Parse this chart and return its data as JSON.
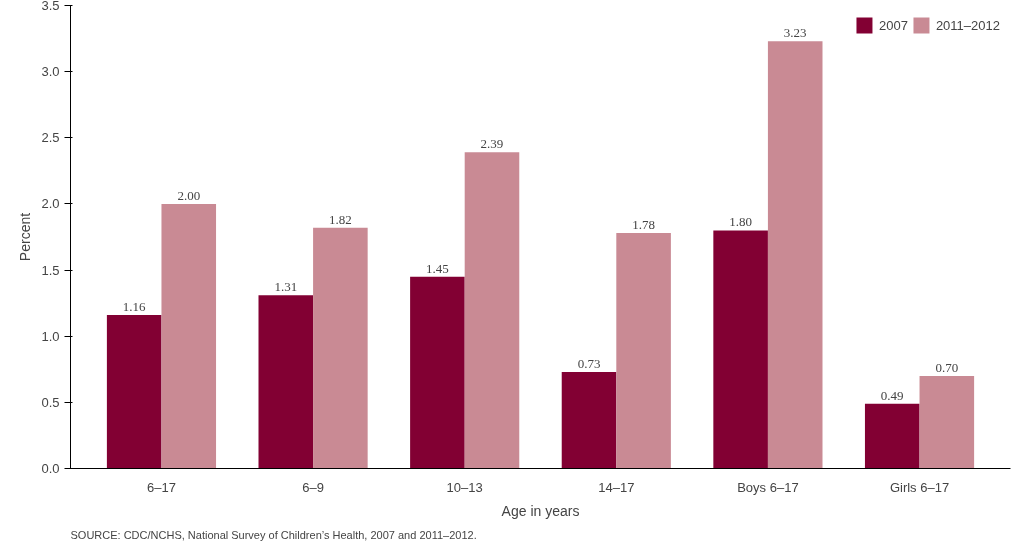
{
  "chart_data": {
    "type": "bar",
    "xlabel": "Age in years",
    "ylabel": "Percent",
    "categories": [
      "6–17",
      "6–9",
      "10–13",
      "14–17",
      "Boys 6–17",
      "Girls 6–17"
    ],
    "series": [
      {
        "name": "2007",
        "color": "#820033",
        "values": [
          1.16,
          1.31,
          1.45,
          0.73,
          1.8,
          0.49
        ],
        "value_labels": [
          "1.16",
          "1.31",
          "1.45",
          "0.73",
          "1.80",
          "0.49"
        ]
      },
      {
        "name": "2011–2012",
        "color": "#c98a94",
        "values": [
          2.0,
          1.82,
          2.39,
          1.78,
          3.23,
          0.7
        ],
        "value_labels": [
          "2.00",
          "1.82",
          "2.39",
          "1.78",
          "3.23",
          "0.70"
        ]
      }
    ],
    "ylim": [
      0,
      3.5
    ],
    "yticks": [
      {
        "value": 0,
        "label": "0.0"
      },
      {
        "value": 0.5,
        "label": "0.5"
      },
      {
        "value": 1,
        "label": "1.0"
      },
      {
        "value": 1.5,
        "label": "1.5"
      },
      {
        "value": 2,
        "label": "2.0"
      },
      {
        "value": 2.5,
        "label": "2.5"
      },
      {
        "value": 3,
        "label": "3.0"
      },
      {
        "value": 3.5,
        "label": "3.5"
      }
    ],
    "grid": false,
    "legend": "top right",
    "annotations": [
      "SOURCE: CDC/NCHS, National Survey of Children’s Health, 2007 and 2011–2012."
    ]
  }
}
